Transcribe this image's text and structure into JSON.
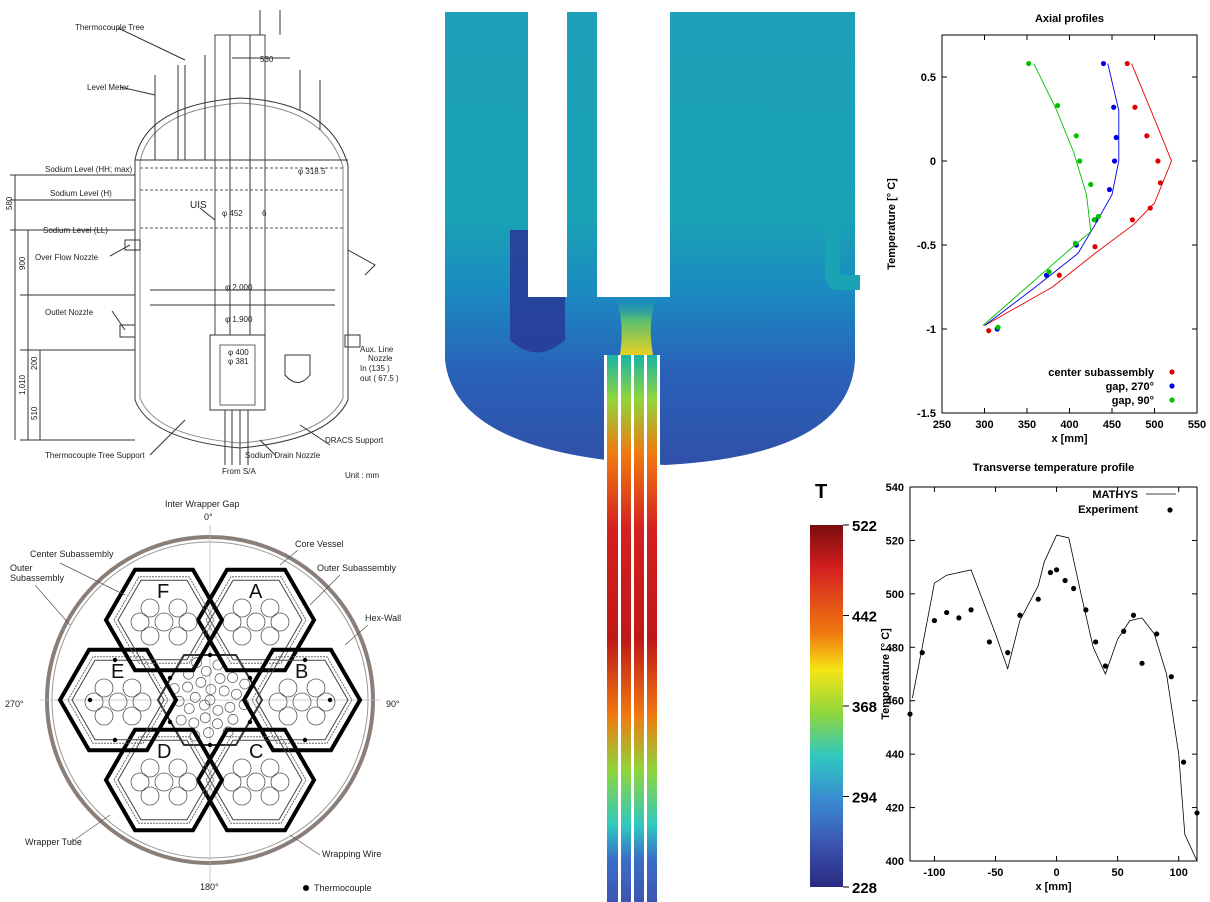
{
  "vessel_drawing": {
    "labels": {
      "thermocouple_tree": "Thermocouple Tree",
      "level_meter": "Level Meter",
      "sodium_level_hh": "Sodium Level (HH; max)",
      "sodium_level_h": "Sodium Level (H)",
      "sodium_level_ll": "Sodium Level (LL)",
      "uis": "UIS",
      "overflow_nozzle": "Over Flow Nozzle",
      "outlet_nozzle": "Outlet Nozzle",
      "aux_line_nozzle": "Aux. Line",
      "aux_line_nozzle_2": "Nozzle",
      "aux_in": "In (135 )",
      "aux_out": "out ( 67.5 )",
      "dracs_support": "DRACS Support",
      "thermocouple_tree_support": "Thermocouple Tree Support",
      "sodium_drain_nozzle": "Sodium Drain Nozzle",
      "from_sa": "From S/A",
      "unit": "Unit : mm",
      "dim_530": "530",
      "dim_318": "φ 318.5",
      "dim_452": "φ 452",
      "dim_6": "6",
      "dim_2000": "φ 2,000",
      "dim_1900": "φ 1,900",
      "dim_400": "φ 400",
      "dim_381": "φ 381",
      "dim_580": "580",
      "dim_900": "900",
      "dim_200": "200",
      "dim_1010": "1,010",
      "dim_510": "510"
    }
  },
  "core_section": {
    "labels": {
      "inter_wrapper_gap": "Inter Wrapper Gap",
      "deg_0": "0°",
      "core_vessel": "Core Vessel",
      "center_subassembly": "Center Subassembly",
      "outer_subassembly_left": "Outer",
      "outer_subassembly_left_2": "Subassembly",
      "outer_subassembly_right": "Outer Subassembly",
      "hex_wall": "Hex-Wall",
      "deg_270": "270°",
      "deg_90": "90°",
      "deg_180": "180°",
      "wrapper_tube": "Wrapper Tube",
      "wrapping_wire": "Wrapping Wire",
      "thermocouple": "Thermocouple"
    },
    "hexes": [
      "A",
      "B",
      "C",
      "D",
      "E",
      "F"
    ]
  },
  "colorbar": {
    "title": "T",
    "ticks": [
      "522",
      "442",
      "368",
      "294",
      "228"
    ],
    "colors": [
      "#7a0c0c",
      "#d42020",
      "#f07a10",
      "#f5e414",
      "#8ed63c",
      "#2fc8c0",
      "#3a8ad0",
      "#3c55b0",
      "#2a2a80"
    ]
  },
  "chart_data": [
    {
      "type": "scatter",
      "title": "Axial profiles",
      "xlabel": "x [mm]",
      "ylabel": "Temperature [° C]",
      "xlim": [
        250,
        550
      ],
      "ylim": [
        -1.5,
        0.75
      ],
      "xticks": [
        "250",
        "300",
        "350",
        "400",
        "450",
        "500",
        "550"
      ],
      "yticks": [
        "0.5",
        "0",
        "-0.5",
        "-1",
        "-1.5"
      ],
      "legend_position": "bottom-right",
      "series": [
        {
          "name": "center subassembly",
          "color": "#e00000",
          "points": [
            [
              468,
              0.58
            ],
            [
              477,
              0.32
            ],
            [
              491,
              0.15
            ],
            [
              504,
              0
            ],
            [
              507,
              -0.13
            ],
            [
              495,
              -0.28
            ],
            [
              474,
              -0.35
            ],
            [
              430,
              -0.51
            ],
            [
              388,
              -0.68
            ],
            [
              305,
              -1.01
            ]
          ],
          "line": [
            [
              473,
              0.58
            ],
            [
              500,
              0.25
            ],
            [
              520,
              0
            ],
            [
              500,
              -0.25
            ],
            [
              475,
              -0.38
            ],
            [
              430,
              -0.55
            ],
            [
              380,
              -0.75
            ],
            [
              300,
              -0.98
            ]
          ]
        },
        {
          "name": "gap, 270°",
          "color": "#0000e0",
          "points": [
            [
              440,
              0.58
            ],
            [
              452,
              0.32
            ],
            [
              455,
              0.14
            ],
            [
              453,
              0
            ],
            [
              447,
              -0.17
            ],
            [
              431,
              -0.35
            ],
            [
              408,
              -0.5
            ],
            [
              373,
              -0.68
            ],
            [
              315,
              -1.0
            ]
          ],
          "line": [
            [
              445,
              0.58
            ],
            [
              458,
              0.3
            ],
            [
              458,
              0
            ],
            [
              450,
              -0.2
            ],
            [
              430,
              -0.38
            ],
            [
              410,
              -0.55
            ],
            [
              360,
              -0.75
            ],
            [
              300,
              -0.98
            ]
          ]
        },
        {
          "name": "gap, 90°",
          "color": "#00c000",
          "points": [
            [
              352,
              0.58
            ],
            [
              386,
              0.33
            ],
            [
              408,
              0.15
            ],
            [
              412,
              0
            ],
            [
              425,
              -0.14
            ],
            [
              434,
              -0.33
            ],
            [
              429,
              -0.35
            ],
            [
              407,
              -0.49
            ],
            [
              376,
              -0.66
            ],
            [
              316,
              -0.99
            ]
          ],
          "line": [
            [
              358,
              0.58
            ],
            [
              385,
              0.3
            ],
            [
              405,
              0.05
            ],
            [
              420,
              -0.2
            ],
            [
              425,
              -0.42
            ],
            [
              395,
              -0.55
            ],
            [
              350,
              -0.75
            ],
            [
              298,
              -0.98
            ]
          ]
        }
      ]
    },
    {
      "type": "line",
      "title": "Transverse temperature profile",
      "xlabel": "x [mm]",
      "ylabel": "Temperature [° C]",
      "xlim": [
        -120,
        115
      ],
      "ylim": [
        400,
        540
      ],
      "xticks": [
        "-100",
        "-50",
        "0",
        "50",
        "100"
      ],
      "yticks": [
        "540",
        "520",
        "500",
        "480",
        "460",
        "440",
        "420",
        "400"
      ],
      "legend_position": "top-right",
      "series": [
        {
          "name": "MATHYS",
          "kind": "line",
          "points": [
            [
              -118,
              461
            ],
            [
              -110,
              480
            ],
            [
              -100,
              504
            ],
            [
              -90,
              507
            ],
            [
              -70,
              509
            ],
            [
              -50,
              485
            ],
            [
              -40,
              472
            ],
            [
              -30,
              490
            ],
            [
              -15,
              503
            ],
            [
              -10,
              512
            ],
            [
              0,
              522
            ],
            [
              10,
              521
            ],
            [
              20,
              500
            ],
            [
              30,
              480
            ],
            [
              40,
              470
            ],
            [
              50,
              483
            ],
            [
              60,
              490
            ],
            [
              70,
              491
            ],
            [
              80,
              485
            ],
            [
              90,
              470
            ],
            [
              100,
              440
            ],
            [
              105,
              410
            ],
            [
              115,
              400
            ]
          ]
        },
        {
          "name": "Experiment",
          "kind": "scatter",
          "points": [
            [
              -120,
              455
            ],
            [
              -110,
              478
            ],
            [
              -100,
              490
            ],
            [
              -90,
              493
            ],
            [
              -80,
              491
            ],
            [
              -70,
              494
            ],
            [
              -55,
              482
            ],
            [
              -40,
              478
            ],
            [
              -30,
              492
            ],
            [
              -15,
              498
            ],
            [
              -5,
              508
            ],
            [
              0,
              509
            ],
            [
              7,
              505
            ],
            [
              14,
              502
            ],
            [
              24,
              494
            ],
            [
              32,
              482
            ],
            [
              40,
              473
            ],
            [
              55,
              486
            ],
            [
              63,
              492
            ],
            [
              70,
              474
            ],
            [
              82,
              485
            ],
            [
              94,
              469
            ],
            [
              104,
              437
            ],
            [
              115,
              418
            ]
          ]
        }
      ]
    }
  ]
}
